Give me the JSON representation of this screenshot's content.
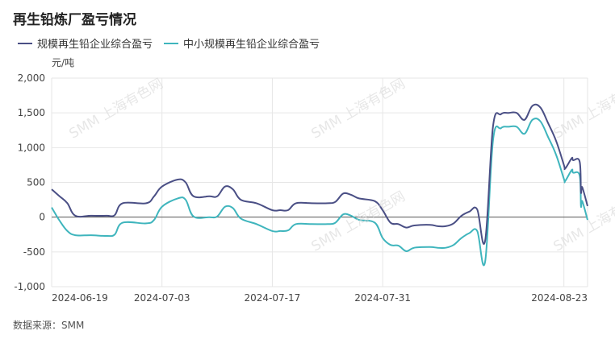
{
  "title": "再生铅炼厂盈亏情况",
  "unit": "元/吨",
  "source": "数据来源：SMM",
  "watermark": "SMM 上海有色网",
  "colors": {
    "series1": "#4a4f85",
    "series2": "#3fb5bd",
    "grid": "#e6e6e6",
    "zero_line": "#555555",
    "axis_text": "#444444"
  },
  "chart_data": {
    "type": "line",
    "title": "再生铅炼厂盈亏情况",
    "ylabel": "元/吨",
    "ylim": [
      -1000,
      2000
    ],
    "yticks": [
      2000,
      1500,
      1000,
      500,
      0,
      -500,
      -1000
    ],
    "ytick_labels": [
      "2,000",
      "1,500",
      "1,000",
      "500",
      "0",
      "-500",
      "-1,000"
    ],
    "xlim": [
      "2024-06-19",
      "2024-08-26"
    ],
    "xticks": [
      "2024-06-19",
      "2024-07-03",
      "2024-07-17",
      "2024-07-31",
      "2024-08-23"
    ],
    "grid": "vertical",
    "legend_position": "top-left",
    "series": [
      {
        "name": "规模再生铅企业综合盈亏",
        "points": [
          [
            "2024-06-19",
            400
          ],
          [
            "2024-06-20",
            300
          ],
          [
            "2024-06-21",
            200
          ],
          [
            "2024-06-22",
            20
          ],
          [
            "2024-06-24",
            20
          ],
          [
            "2024-06-26",
            20
          ],
          [
            "2024-06-27",
            30
          ],
          [
            "2024-06-28",
            200
          ],
          [
            "2024-07-01",
            200
          ],
          [
            "2024-07-02",
            300
          ],
          [
            "2024-07-03",
            440
          ],
          [
            "2024-07-05",
            540
          ],
          [
            "2024-07-06",
            500
          ],
          [
            "2024-07-07",
            300
          ],
          [
            "2024-07-09",
            300
          ],
          [
            "2024-07-10",
            300
          ],
          [
            "2024-07-11",
            440
          ],
          [
            "2024-07-12",
            400
          ],
          [
            "2024-07-13",
            250
          ],
          [
            "2024-07-15",
            200
          ],
          [
            "2024-07-17",
            100
          ],
          [
            "2024-07-18",
            100
          ],
          [
            "2024-07-19",
            100
          ],
          [
            "2024-07-20",
            200
          ],
          [
            "2024-07-22",
            200
          ],
          [
            "2024-07-24",
            200
          ],
          [
            "2024-07-25",
            220
          ],
          [
            "2024-07-26",
            340
          ],
          [
            "2024-07-27",
            320
          ],
          [
            "2024-07-28",
            270
          ],
          [
            "2024-07-30",
            230
          ],
          [
            "2024-07-31",
            100
          ],
          [
            "2024-08-01",
            -80
          ],
          [
            "2024-08-02",
            -100
          ],
          [
            "2024-08-03",
            -150
          ],
          [
            "2024-08-04",
            -120
          ],
          [
            "2024-08-06",
            -110
          ],
          [
            "2024-08-07",
            -130
          ],
          [
            "2024-08-08",
            -130
          ],
          [
            "2024-08-09",
            -90
          ],
          [
            "2024-08-10",
            20
          ],
          [
            "2024-08-11",
            80
          ],
          [
            "2024-08-12",
            110
          ],
          [
            "2024-08-13",
            -340
          ],
          [
            "2024-08-14",
            1300
          ],
          [
            "2024-08-15",
            1480
          ],
          [
            "2024-08-16",
            1500
          ],
          [
            "2024-08-17",
            1500
          ],
          [
            "2024-08-18",
            1400
          ],
          [
            "2024-08-19",
            1600
          ],
          [
            "2024-08-20",
            1580
          ],
          [
            "2024-08-21",
            1350
          ],
          [
            "2024-08-22",
            1100
          ],
          [
            "2024-08-23",
            750
          ],
          [
            "2024-08-23",
            700
          ],
          [
            "2024-08-24",
            850
          ],
          [
            "2024-08-24",
            820
          ],
          [
            "2024-08-25",
            800
          ],
          [
            "2024-08-25",
            360
          ],
          [
            "2024-08-25",
            430
          ],
          [
            "2024-08-26",
            160
          ]
        ]
      },
      {
        "name": "中小规模再生铅企业综合盈亏",
        "points": [
          [
            "2024-06-19",
            140
          ],
          [
            "2024-06-20",
            -50
          ],
          [
            "2024-06-21",
            -200
          ],
          [
            "2024-06-22",
            -260
          ],
          [
            "2024-06-24",
            -260
          ],
          [
            "2024-06-26",
            -270
          ],
          [
            "2024-06-27",
            -250
          ],
          [
            "2024-06-28",
            -80
          ],
          [
            "2024-07-01",
            -90
          ],
          [
            "2024-07-02",
            -40
          ],
          [
            "2024-07-03",
            150
          ],
          [
            "2024-07-05",
            270
          ],
          [
            "2024-07-06",
            250
          ],
          [
            "2024-07-07",
            10
          ],
          [
            "2024-07-09",
            0
          ],
          [
            "2024-07-10",
            10
          ],
          [
            "2024-07-11",
            150
          ],
          [
            "2024-07-12",
            130
          ],
          [
            "2024-07-13",
            -20
          ],
          [
            "2024-07-15",
            -100
          ],
          [
            "2024-07-17",
            -200
          ],
          [
            "2024-07-18",
            -200
          ],
          [
            "2024-07-19",
            -190
          ],
          [
            "2024-07-20",
            -100
          ],
          [
            "2024-07-22",
            -100
          ],
          [
            "2024-07-24",
            -100
          ],
          [
            "2024-07-25",
            -80
          ],
          [
            "2024-07-26",
            40
          ],
          [
            "2024-07-27",
            20
          ],
          [
            "2024-07-28",
            -40
          ],
          [
            "2024-07-30",
            -80
          ],
          [
            "2024-07-31",
            -300
          ],
          [
            "2024-08-01",
            -400
          ],
          [
            "2024-08-02",
            -410
          ],
          [
            "2024-08-03",
            -490
          ],
          [
            "2024-08-04",
            -440
          ],
          [
            "2024-08-06",
            -430
          ],
          [
            "2024-08-07",
            -440
          ],
          [
            "2024-08-08",
            -440
          ],
          [
            "2024-08-09",
            -400
          ],
          [
            "2024-08-10",
            -300
          ],
          [
            "2024-08-11",
            -230
          ],
          [
            "2024-08-12",
            -200
          ],
          [
            "2024-08-13",
            -640
          ],
          [
            "2024-08-14",
            1100
          ],
          [
            "2024-08-15",
            1280
          ],
          [
            "2024-08-16",
            1300
          ],
          [
            "2024-08-17",
            1300
          ],
          [
            "2024-08-18",
            1200
          ],
          [
            "2024-08-19",
            1400
          ],
          [
            "2024-08-20",
            1380
          ],
          [
            "2024-08-21",
            1150
          ],
          [
            "2024-08-22",
            900
          ],
          [
            "2024-08-23",
            550
          ],
          [
            "2024-08-23",
            520
          ],
          [
            "2024-08-24",
            680
          ],
          [
            "2024-08-24",
            640
          ],
          [
            "2024-08-25",
            600
          ],
          [
            "2024-08-25",
            160
          ],
          [
            "2024-08-25",
            230
          ],
          [
            "2024-08-26",
            -40
          ]
        ]
      }
    ]
  }
}
